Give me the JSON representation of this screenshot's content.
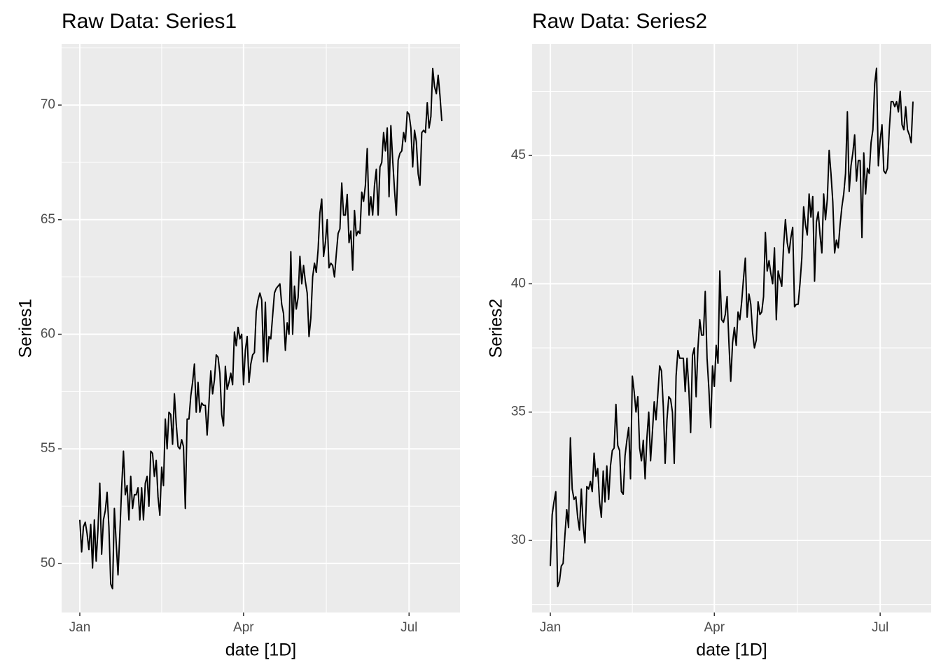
{
  "chart_data": [
    {
      "type": "line",
      "title": "Raw Data: Series1",
      "x_label": "date [1D]",
      "y_label": "Series1",
      "color": "#000000",
      "grid": true,
      "xlim": [
        -10,
        209
      ],
      "ylim": [
        47.86,
        72.66
      ],
      "xticks": [
        {
          "value": 0,
          "label": "Jan"
        },
        {
          "value": 90,
          "label": "Apr"
        },
        {
          "value": 181,
          "label": "Jul"
        }
      ],
      "yticks": [
        50,
        55,
        60,
        65,
        70
      ],
      "values": [
        51.9,
        50.5,
        51.6,
        51.8,
        51.3,
        50.6,
        51.7,
        49.8,
        51.9,
        50.1,
        51.5,
        53.5,
        50.4,
        51.9,
        52.3,
        53.1,
        51.6,
        49.1,
        48.9,
        52.4,
        50.9,
        49.5,
        51.3,
        53.3,
        54.9,
        53.0,
        53.4,
        51.9,
        53.8,
        52.4,
        53.0,
        53.0,
        53.3,
        51.9,
        53.3,
        51.9,
        53.5,
        53.8,
        52.5,
        54.9,
        54.8,
        53.8,
        54.5,
        52.9,
        52.1,
        54.2,
        53.4,
        56.3,
        55.0,
        56.6,
        56.5,
        55.2,
        57.4,
        56.1,
        55.1,
        55.0,
        55.4,
        55.1,
        52.4,
        56.3,
        56.3,
        57.3,
        57.9,
        58.7,
        56.6,
        57.9,
        56.6,
        57.0,
        56.9,
        56.9,
        55.6,
        57.0,
        58.4,
        57.4,
        58.0,
        59.1,
        59.0,
        58.3,
        56.5,
        56.0,
        58.6,
        57.6,
        57.9,
        58.3,
        57.8,
        60.1,
        59.5,
        60.3,
        59.8,
        60.0,
        57.8,
        59.3,
        59.9,
        57.9,
        58.7,
        59.1,
        59.2,
        61.0,
        61.5,
        61.8,
        61.5,
        58.8,
        61.4,
        58.8,
        59.9,
        59.8,
        60.8,
        61.8,
        62.0,
        62.1,
        62.2,
        61.3,
        60.9,
        59.3,
        60.5,
        60.0,
        63.6,
        60.0,
        62.1,
        61.1,
        61.6,
        63.4,
        62.2,
        63.0,
        62.3,
        61.8,
        59.9,
        60.7,
        62.5,
        63.1,
        62.7,
        63.7,
        65.3,
        65.9,
        63.4,
        64.0,
        65.0,
        62.9,
        63.1,
        63.0,
        62.5,
        63.5,
        64.4,
        64.6,
        66.6,
        65.2,
        65.2,
        66.1,
        64.0,
        64.5,
        62.8,
        65.4,
        64.3,
        64.5,
        64.4,
        66.2,
        65.8,
        66.5,
        68.1,
        65.2,
        66.0,
        65.2,
        66.5,
        67.2,
        65.2,
        67.3,
        67.5,
        68.8,
        68.0,
        69.0,
        66.0,
        69.1,
        67.6,
        66.3,
        65.2,
        67.6,
        67.9,
        68.0,
        68.8,
        68.4,
        69.7,
        69.6,
        69.0,
        67.3,
        68.9,
        68.4,
        67.0,
        66.5,
        68.8,
        68.9,
        68.8,
        70.1,
        69.0,
        69.5,
        71.6,
        70.8,
        70.5,
        71.3,
        70.4,
        69.3
      ]
    },
    {
      "type": "line",
      "title": "Raw Data: Series2",
      "x_label": "date [1D]",
      "y_label": "Series2",
      "color": "#000000",
      "grid": true,
      "xlim": [
        -10,
        209
      ],
      "ylim": [
        27.19,
        49.34
      ],
      "xticks": [
        {
          "value": 0,
          "label": "Jan"
        },
        {
          "value": 90,
          "label": "Apr"
        },
        {
          "value": 181,
          "label": "Jul"
        }
      ],
      "yticks": [
        30,
        35,
        40,
        45
      ],
      "values": [
        29.0,
        31.0,
        31.5,
        31.9,
        28.2,
        28.4,
        29.0,
        29.1,
        30.2,
        31.2,
        30.5,
        34.0,
        32.0,
        31.6,
        31.7,
        30.9,
        30.4,
        32.0,
        30.6,
        29.9,
        32.1,
        32.0,
        32.3,
        31.9,
        33.4,
        32.5,
        32.8,
        31.5,
        30.9,
        32.7,
        31.5,
        32.9,
        31.6,
        32.9,
        33.5,
        33.6,
        35.3,
        33.7,
        33.5,
        31.9,
        31.8,
        33.3,
        33.9,
        34.4,
        32.4,
        36.4,
        35.8,
        35.0,
        35.6,
        33.6,
        33.1,
        33.9,
        32.4,
        34.0,
        35.0,
        33.1,
        34.2,
        35.4,
        34.7,
        35.7,
        36.8,
        36.6,
        35.2,
        33.0,
        34.7,
        35.6,
        35.5,
        35.0,
        33.0,
        36.4,
        37.4,
        37.1,
        37.1,
        37.1,
        35.8,
        37.1,
        35.9,
        34.2,
        37.2,
        37.5,
        35.6,
        37.5,
        38.6,
        38.0,
        38.0,
        39.7,
        37.1,
        35.9,
        34.4,
        36.8,
        36.0,
        37.6,
        36.9,
        40.5,
        38.6,
        38.5,
        38.8,
        39.5,
        37.7,
        36.2,
        37.7,
        38.3,
        37.6,
        38.9,
        38.6,
        39.3,
        40.2,
        41.0,
        38.7,
        39.6,
        39.2,
        38.1,
        37.5,
        37.8,
        39.3,
        38.8,
        38.9,
        39.5,
        42.0,
        40.5,
        40.9,
        40.4,
        40.0,
        41.4,
        38.6,
        40.5,
        40.2,
        39.9,
        41.5,
        42.5,
        41.6,
        41.2,
        41.8,
        42.2,
        39.1,
        39.2,
        39.2,
        40.0,
        41.0,
        43.0,
        42.3,
        41.9,
        43.5,
        42.6,
        43.4,
        40.1,
        42.4,
        42.8,
        41.9,
        41.2,
        43.5,
        42.5,
        43.3,
        45.2,
        44.3,
        43.2,
        41.2,
        41.7,
        41.4,
        42.3,
        43.0,
        43.5,
        44.3,
        46.7,
        43.6,
        44.6,
        45.1,
        45.8,
        44.0,
        44.8,
        44.8,
        41.8,
        45.1,
        43.5,
        44.5,
        44.3,
        45.5,
        46.0,
        47.8,
        48.4,
        44.6,
        45.6,
        46.2,
        44.4,
        44.3,
        44.5,
        46.0,
        47.1,
        47.1,
        46.9,
        47.1,
        46.7,
        47.5,
        46.2,
        46.0,
        46.9,
        46.0,
        45.8,
        45.5,
        47.1
      ]
    }
  ]
}
